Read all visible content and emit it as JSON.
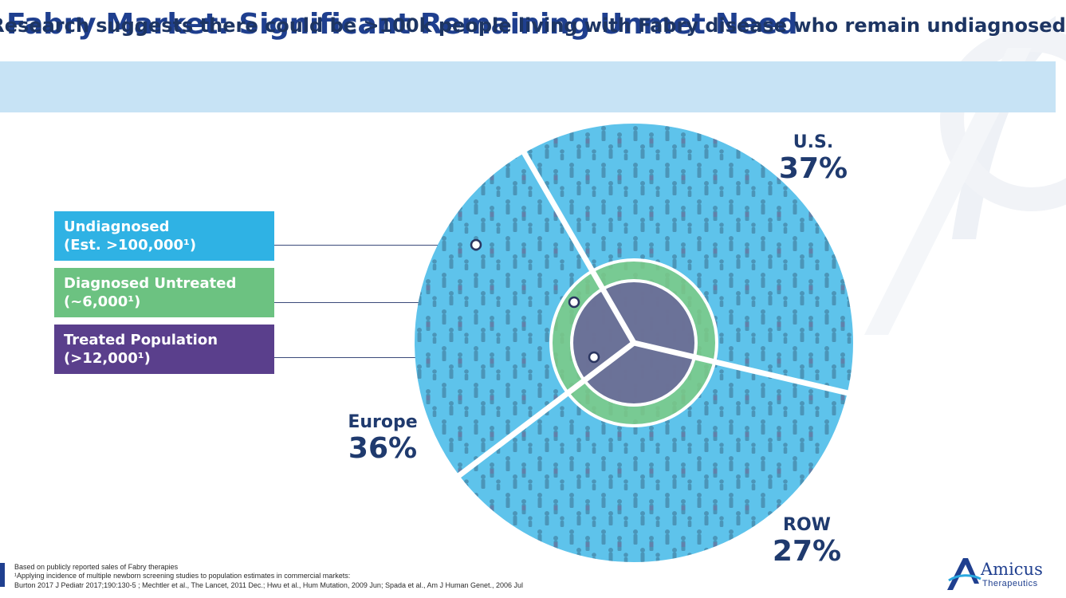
{
  "slide": {
    "title": "Fabry Market: Significant Remaining Unmet Need",
    "banner": "Research suggests there could be >100k people living with Fabry disease who remain undiagnosed"
  },
  "legend": [
    {
      "line1": "Undiagnosed",
      "line2": "(Est. >100,000¹)",
      "color": "#2fb2e4"
    },
    {
      "line1": "Diagnosed Untreated",
      "line2": "(~6,000¹)",
      "color": "#6cc281"
    },
    {
      "line1": "Treated Population",
      "line2": "(>12,000¹)",
      "color": "#5a3f8c"
    }
  ],
  "regions": {
    "us": {
      "name": "U.S.",
      "pct": "37%"
    },
    "europe": {
      "name": "Europe",
      "pct": "36%"
    },
    "row": {
      "name": "ROW",
      "pct": "27%"
    }
  },
  "chart_data": {
    "type": "pie",
    "categories": [
      "U.S.",
      "Europe",
      "ROW"
    ],
    "values": [
      37,
      36,
      27
    ],
    "rings": [
      "Undiagnosed",
      "Diagnosed Untreated",
      "Treated Population"
    ],
    "colors": {
      "outer": "#5ec3eb",
      "middle": "#7dcb84",
      "inner": "#6a6a98"
    }
  },
  "footnotes": {
    "line1": "Based on publicly reported sales of Fabry therapies",
    "line2": "¹Applying incidence of multiple newborn screening studies to population estimates in commercial markets:",
    "line3": "Burton 2017 J Pediatr 2017;190:130-5 ; Mechtler et al., The Lancet, 2011 Dec.; Hwu et al., Hum Mutation, 2009 Jun; Spada et al., Am J Human Genet., 2006 Jul"
  },
  "logo": {
    "name": "Amicus",
    "tagline": "Therapeutics"
  }
}
